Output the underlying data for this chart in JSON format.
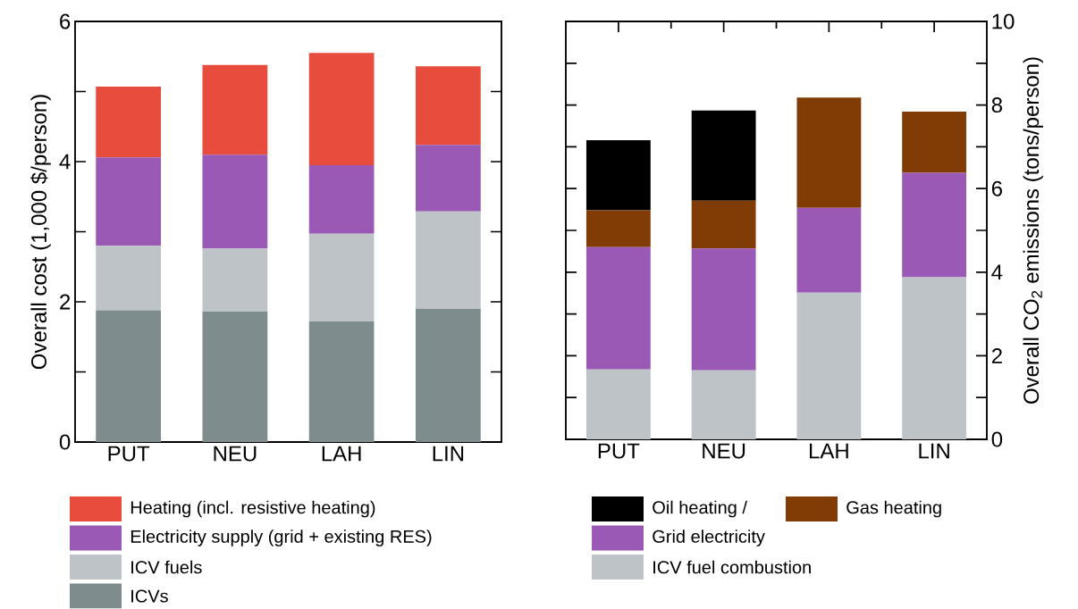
{
  "chart_data": [
    {
      "type": "bar",
      "stacked": true,
      "ylabel": "Overall cost (1,000 $/person)",
      "categories": [
        "PUT",
        "NEU",
        "LAH",
        "LIN"
      ],
      "ylim": [
        0,
        6
      ],
      "yticks": [
        0,
        {
          "value": 1,
          "label": null
        },
        2,
        {
          "value": 3,
          "label": null
        },
        4,
        {
          "value": 5,
          "label": null
        },
        6
      ],
      "legend": "bottom",
      "series": [
        {
          "name": "ICVs",
          "color": "#7f8c8d",
          "values": [
            1.88,
            1.86,
            1.72,
            1.9
          ]
        },
        {
          "name": "ICV fuels",
          "color": "#bdc3c7",
          "values": [
            0.92,
            0.9,
            1.25,
            1.39
          ]
        },
        {
          "name": "Electricity supply (grid + existing RES)",
          "color": "#9b59b6",
          "values": [
            1.26,
            1.34,
            0.98,
            0.95
          ]
        },
        {
          "name": "Heating (incl. resistive heating)",
          "color": "#e74c3c",
          "values": [
            1.01,
            1.28,
            1.6,
            1.12
          ]
        }
      ]
    },
    {
      "type": "bar",
      "stacked": true,
      "y2label": "Overall CO$_{2}$ emissions (tons/person)",
      "categories": [
        "PUT",
        "NEU",
        "LAH",
        "LIN"
      ],
      "y2lim": [
        0,
        10
      ],
      "y2ticks": [
        0,
        {
          "value": 1,
          "label": null
        },
        2,
        {
          "value": 3,
          "label": null
        },
        4,
        {
          "value": 5,
          "label": null
        },
        6,
        {
          "value": 7,
          "label": null
        },
        8,
        {
          "value": 9,
          "label": null
        },
        10
      ],
      "legend": "bottom",
      "series": [
        {
          "name": "ICV fuel combustion",
          "color": "#bdc3c7",
          "axis": "y2",
          "values": [
            1.67,
            1.65,
            3.51,
            3.88
          ]
        },
        {
          "name": "Grid electricity",
          "color": "#9b59b6",
          "axis": "y2",
          "values": [
            2.93,
            2.92,
            2.03,
            2.5
          ]
        },
        {
          "name": "Gas heating",
          "color": "#803c04",
          "axis": "y2",
          "values": [
            0.88,
            1.14,
            2.64,
            1.46
          ]
        },
        {
          "name": "Oil heating /",
          "color": "#000000",
          "axis": "y2",
          "values": [
            1.68,
            2.16,
            null,
            null
          ]
        }
      ]
    }
  ]
}
